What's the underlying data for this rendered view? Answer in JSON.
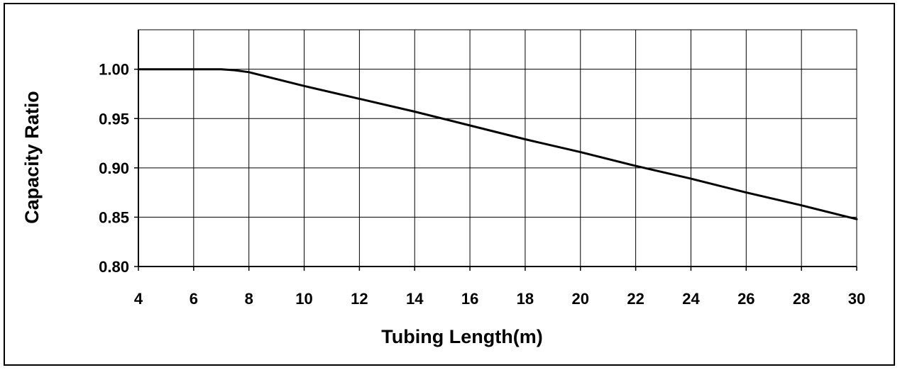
{
  "chart_data": {
    "type": "line",
    "title": "",
    "xlabel": "Tubing Length(m)",
    "ylabel": "Capacity Ratio",
    "xlim": [
      4,
      30
    ],
    "ylim": [
      0.8,
      1.04
    ],
    "x_ticks": [
      4,
      6,
      8,
      10,
      12,
      14,
      16,
      18,
      20,
      22,
      24,
      26,
      28,
      30
    ],
    "x_tick_labels": [
      "4",
      "6",
      "8",
      "10",
      "12",
      "14",
      "16",
      "18",
      "20",
      "22",
      "24",
      "26",
      "28",
      "30"
    ],
    "y_ticks": [
      0.8,
      0.85,
      0.9,
      0.95,
      1.0
    ],
    "y_tick_labels": [
      "0.80",
      "0.85",
      "0.90",
      "0.95",
      "1.00"
    ],
    "grid": true,
    "legend": "none",
    "series": [
      {
        "color": "#000000",
        "x": [
          4,
          5,
          6,
          6.5,
          7,
          7.5,
          8,
          9,
          10,
          12,
          14,
          16,
          18,
          20,
          22,
          24,
          26,
          28,
          30
        ],
        "y": [
          1.0,
          1.0,
          1.0,
          1.0,
          1.0,
          0.999,
          0.997,
          0.99,
          0.983,
          0.97,
          0.957,
          0.943,
          0.929,
          0.916,
          0.902,
          0.889,
          0.875,
          0.862,
          0.848
        ]
      }
    ]
  }
}
